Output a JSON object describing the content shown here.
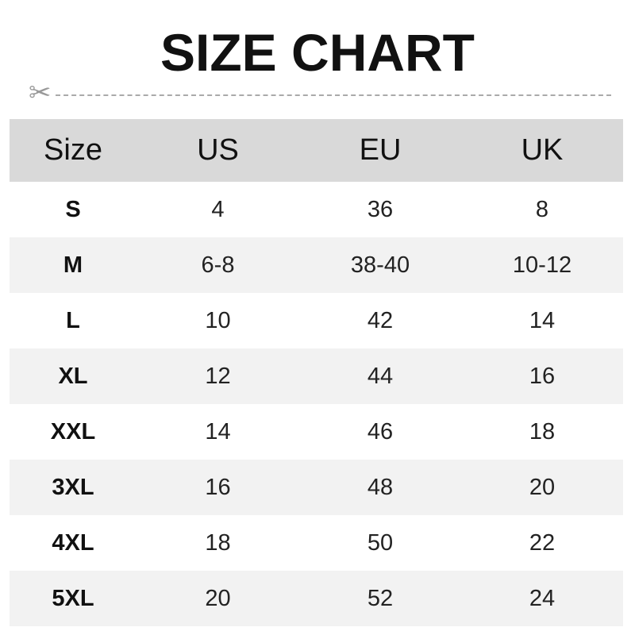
{
  "title": "SIZE CHART",
  "icons": {
    "cut": "scissors-icon"
  },
  "colors": {
    "header_bg": "#d9d9d9",
    "stripe_bg": "#f2f2f2"
  },
  "table": {
    "headers": [
      "Size",
      "US",
      "EU",
      "UK"
    ],
    "rows": [
      [
        "S",
        "4",
        "36",
        "8"
      ],
      [
        "M",
        "6-8",
        "38-40",
        "10-12"
      ],
      [
        "L",
        "10",
        "42",
        "14"
      ],
      [
        "XL",
        "12",
        "44",
        "16"
      ],
      [
        "XXL",
        "14",
        "46",
        "18"
      ],
      [
        "3XL",
        "16",
        "48",
        "20"
      ],
      [
        "4XL",
        "18",
        "50",
        "22"
      ],
      [
        "5XL",
        "20",
        "52",
        "24"
      ]
    ]
  }
}
